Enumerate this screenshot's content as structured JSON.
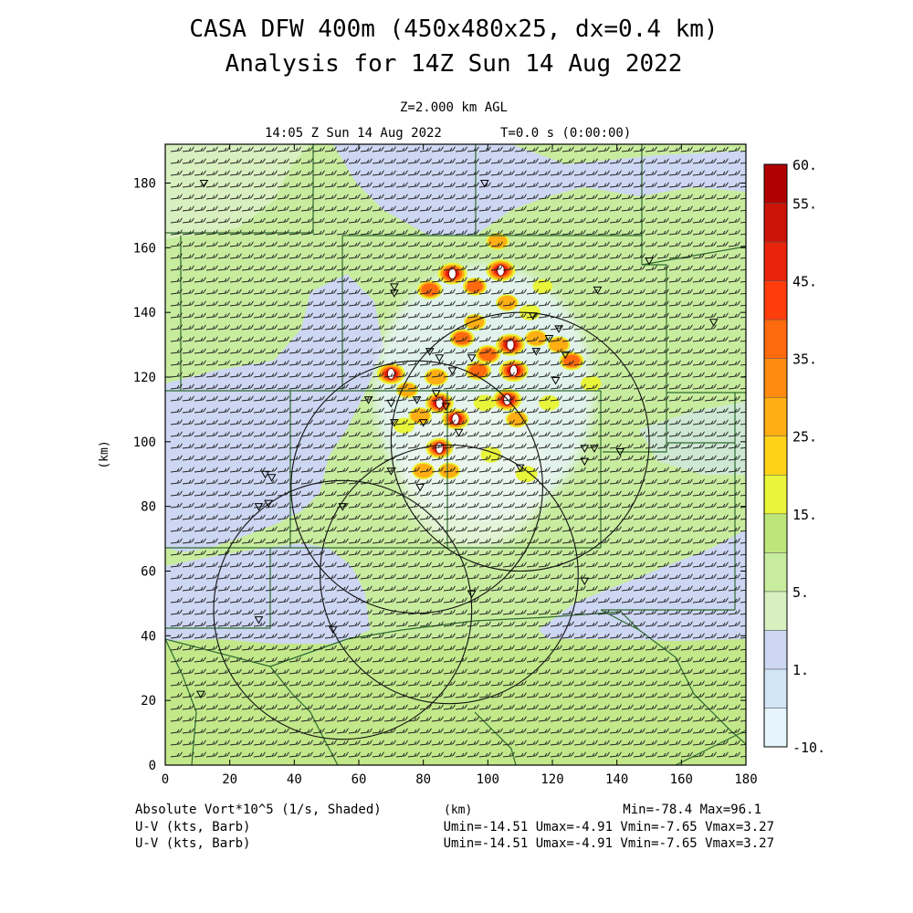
{
  "title_line1": "CASA DFW 400m (450x480x25, dx=0.4 km)",
  "title_line2": "Analysis for 14Z Sun 14 Aug 2022",
  "level": "Z=2.000 km AGL",
  "valid_time": "14:05 Z Sun 14 Aug 2022",
  "forecast_time": "T=0.0 s (0:00:00)",
  "footer": {
    "shaded_label": "Absolute Vort*10^5 (1/s, Shaded)",
    "xunit": "(km)",
    "minmax": "Min=-78.4 Max=96.1",
    "barb_label_1": "U-V (kts, Barb)",
    "barb_stats_1": "Umin=-14.51 Umax=-4.91 Vmin=-7.65 Vmax=3.27",
    "barb_label_2": "U-V (kts, Barb)",
    "barb_stats_2": "Umin=-14.51 Umax=-4.91 Vmin=-7.65 Vmax=3.27"
  },
  "colors": {
    "frame": "#000000",
    "county_lines": "#2e6b2e",
    "barb": "#202020"
  },
  "chart_data": {
    "type": "heatmap",
    "field": "Absolute Vort*10^5 (1/s, Shaded)",
    "xlabel": "",
    "ylabel": "(km)",
    "xlim": [
      0,
      180
    ],
    "ylim": [
      0,
      192
    ],
    "xticks": [
      0,
      20,
      40,
      60,
      80,
      100,
      120,
      140,
      160,
      180
    ],
    "yticks": [
      0,
      20,
      40,
      60,
      80,
      100,
      120,
      140,
      160,
      180
    ],
    "min": -78.4,
    "max": 96.1,
    "colorbar": {
      "labels": [
        "60.",
        "55.",
        "45.",
        "35.",
        "25.",
        "15.",
        "5.",
        "1.",
        "-10."
      ],
      "levels": [
        {
          "lo": -10,
          "hi": -5,
          "color": "#e6f4fb"
        },
        {
          "lo": -5,
          "hi": 0,
          "color": "#d2e6f6"
        },
        {
          "lo": 0,
          "hi": 2,
          "color": "#cdd6f2"
        },
        {
          "lo": 2,
          "hi": 5,
          "color": "#d8f0bf"
        },
        {
          "lo": 5,
          "hi": 10,
          "color": "#c8ec9e"
        },
        {
          "lo": 10,
          "hi": 15,
          "color": "#bde67a"
        },
        {
          "lo": 15,
          "hi": 20,
          "color": "#e8f53a"
        },
        {
          "lo": 20,
          "hi": 25,
          "color": "#ffd21a"
        },
        {
          "lo": 25,
          "hi": 30,
          "color": "#ffae14"
        },
        {
          "lo": 30,
          "hi": 35,
          "color": "#ff8c10"
        },
        {
          "lo": 35,
          "hi": 40,
          "color": "#ff6a0e"
        },
        {
          "lo": 40,
          "hi": 45,
          "color": "#ff3c0c"
        },
        {
          "lo": 45,
          "hi": 50,
          "color": "#e8240a"
        },
        {
          "lo": 50,
          "hi": 55,
          "color": "#cc1408"
        },
        {
          "lo": 55,
          "hi": 60,
          "color": "#b00000"
        }
      ]
    },
    "radar_rings_km": [
      {
        "cx": 110,
        "cy": 100,
        "r": 40
      },
      {
        "cx": 78,
        "cy": 86,
        "r": 39
      },
      {
        "cx": 88,
        "cy": 59,
        "r": 40
      },
      {
        "cx": 55,
        "cy": 48,
        "r": 40
      }
    ],
    "stations_km": [
      [
        12,
        180
      ],
      [
        99,
        180
      ],
      [
        150,
        156
      ],
      [
        71,
        148
      ],
      [
        71,
        146
      ],
      [
        134,
        147
      ],
      [
        114,
        139
      ],
      [
        170,
        137
      ],
      [
        122,
        135
      ],
      [
        119,
        132
      ],
      [
        115,
        128
      ],
      [
        124,
        127
      ],
      [
        82,
        128
      ],
      [
        85,
        126
      ],
      [
        89,
        122
      ],
      [
        95,
        126
      ],
      [
        121,
        119
      ],
      [
        63,
        113
      ],
      [
        84,
        115
      ],
      [
        78,
        113
      ],
      [
        70,
        112
      ],
      [
        87,
        111
      ],
      [
        80,
        106
      ],
      [
        91,
        103
      ],
      [
        71,
        106
      ],
      [
        130,
        98
      ],
      [
        133,
        98
      ],
      [
        141,
        97
      ],
      [
        130,
        94
      ],
      [
        110,
        92
      ],
      [
        70,
        91
      ],
      [
        31,
        90
      ],
      [
        33,
        89
      ],
      [
        79,
        86
      ],
      [
        32,
        81
      ],
      [
        29,
        80
      ],
      [
        55,
        80
      ],
      [
        130,
        57
      ],
      [
        95,
        53
      ],
      [
        52,
        42
      ],
      [
        11,
        22
      ],
      [
        29,
        45
      ]
    ],
    "hotspots_km": [
      {
        "x": 104,
        "y": 153,
        "v": 60
      },
      {
        "x": 107,
        "y": 130,
        "v": 60
      },
      {
        "x": 108,
        "y": 122,
        "v": 60
      },
      {
        "x": 106,
        "y": 113,
        "v": 58
      },
      {
        "x": 89,
        "y": 152,
        "v": 58
      },
      {
        "x": 70,
        "y": 121,
        "v": 55
      },
      {
        "x": 85,
        "y": 112,
        "v": 55
      },
      {
        "x": 90,
        "y": 107,
        "v": 52
      },
      {
        "x": 85,
        "y": 98,
        "v": 50
      },
      {
        "x": 82,
        "y": 147,
        "v": 42
      },
      {
        "x": 96,
        "y": 148,
        "v": 35
      },
      {
        "x": 103,
        "y": 162,
        "v": 30
      },
      {
        "x": 92,
        "y": 132,
        "v": 38
      },
      {
        "x": 100,
        "y": 127,
        "v": 40
      },
      {
        "x": 97,
        "y": 122,
        "v": 44
      },
      {
        "x": 126,
        "y": 125,
        "v": 38
      },
      {
        "x": 115,
        "y": 132,
        "v": 30
      },
      {
        "x": 113,
        "y": 140,
        "v": 22
      },
      {
        "x": 122,
        "y": 130,
        "v": 28
      },
      {
        "x": 84,
        "y": 120,
        "v": 34
      },
      {
        "x": 79,
        "y": 108,
        "v": 30
      },
      {
        "x": 74,
        "y": 105,
        "v": 22
      },
      {
        "x": 80,
        "y": 91,
        "v": 30
      },
      {
        "x": 88,
        "y": 91,
        "v": 26
      },
      {
        "x": 112,
        "y": 90,
        "v": 24
      },
      {
        "x": 109,
        "y": 107,
        "v": 28
      },
      {
        "x": 99,
        "y": 112,
        "v": 24
      },
      {
        "x": 96,
        "y": 137,
        "v": 26
      },
      {
        "x": 119,
        "y": 112,
        "v": 18
      },
      {
        "x": 132,
        "y": 118,
        "v": 18
      },
      {
        "x": 75,
        "y": 116,
        "v": 26
      },
      {
        "x": 106,
        "y": 143,
        "v": 28
      },
      {
        "x": 101,
        "y": 96,
        "v": 20
      },
      {
        "x": 126,
        "y": 106,
        "v": 14
      },
      {
        "x": 117,
        "y": 148,
        "v": 16
      },
      {
        "x": 28,
        "y": 46,
        "v": 14
      }
    ]
  }
}
